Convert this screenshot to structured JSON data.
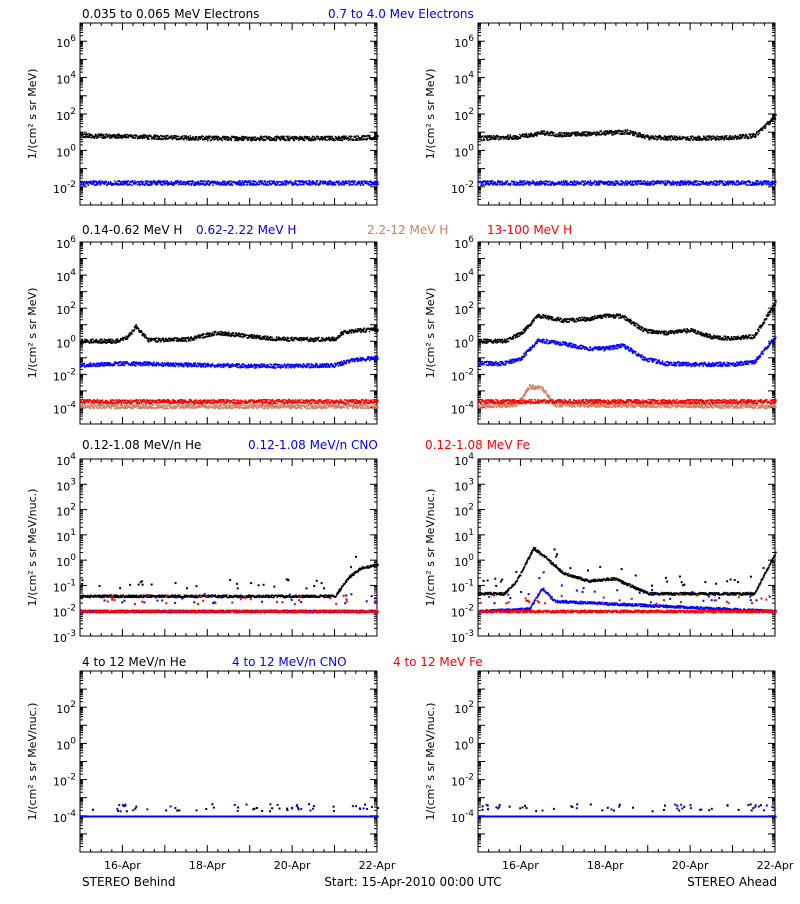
{
  "chart_data": {
    "type": "scatter",
    "footer": {
      "left": "STEREO Behind",
      "center": "Start: 15-Apr-2010 00:00 UTC",
      "right": "STEREO Ahead"
    },
    "x_ticks": [
      "16-Apr",
      "18-Apr",
      "20-Apr",
      "22-Apr"
    ],
    "x_range": [
      0,
      7
    ],
    "colors": {
      "black": "#000000",
      "blue": "#0000ff",
      "tan": "#cd8162",
      "red": "#ff0000",
      "orange": "#ff8c00"
    },
    "rows": [
      {
        "id": "electrons",
        "legend": [
          {
            "text": "0.035 to 0.065 MeV Electrons",
            "color": "#000000"
          },
          {
            "text": "0.7 to 4.0 Mev Electrons",
            "color": "#0000ff"
          }
        ],
        "ylabel": "1/(cm² s sr MeV)",
        "ylog": [
          -3,
          7
        ],
        "ytick_labels": [
          {
            "exp": -2,
            "text": "10",
            "sup": "-2"
          },
          {
            "exp": 0,
            "text": "10",
            "sup": "0"
          },
          {
            "exp": 2,
            "text": "10",
            "sup": "2"
          },
          {
            "exp": 4,
            "text": "10",
            "sup": "4"
          },
          {
            "exp": 6,
            "text": "10",
            "sup": "6"
          }
        ],
        "panels": {
          "behind": [
            {
              "name": "0.035 to 0.065 MeV Electrons",
              "color": "#000000",
              "x": [
                0,
                1,
                2,
                3,
                4,
                5,
                6,
                7
              ],
              "log10_flux": [
                0.85,
                0.8,
                0.75,
                0.7,
                0.7,
                0.7,
                0.7,
                0.75
              ]
            },
            {
              "name": "0.7 to 4.0 Mev Electrons",
              "color": "#0000ff",
              "x": [
                0,
                7
              ],
              "log10_flux": [
                -1.75,
                -1.75
              ]
            }
          ],
          "ahead": [
            {
              "name": "0.035 to 0.065 MeV Electrons",
              "color": "#000000",
              "x": [
                0,
                1,
                1.5,
                2,
                3,
                3.5,
                4,
                5,
                6,
                6.5,
                7
              ],
              "log10_flux": [
                0.7,
                0.8,
                1.0,
                0.9,
                1.0,
                1.05,
                0.75,
                0.7,
                0.75,
                0.85,
                1.9
              ]
            },
            {
              "name": "0.7 to 4.0 Mev Electrons",
              "color": "#0000ff",
              "x": [
                0,
                7
              ],
              "log10_flux": [
                -1.75,
                -1.75
              ]
            }
          ]
        }
      },
      {
        "id": "protons",
        "legend": [
          {
            "text": "0.14-0.62 MeV H",
            "color": "#000000"
          },
          {
            "text": "0.62-2.22 MeV H",
            "color": "#0000ff"
          },
          {
            "text": "2.2-12 MeV H",
            "color": "#cd8162"
          },
          {
            "text": "13-100 MeV H",
            "color": "#ff0000"
          }
        ],
        "ylabel": "1/(cm² s sr MeV)",
        "ylog": [
          -5,
          6
        ],
        "ytick_labels": [
          {
            "exp": -4,
            "text": "10",
            "sup": "-4"
          },
          {
            "exp": -2,
            "text": "10",
            "sup": "-2"
          },
          {
            "exp": 0,
            "text": "10",
            "sup": "0"
          },
          {
            "exp": 2,
            "text": "10",
            "sup": "2"
          },
          {
            "exp": 4,
            "text": "10",
            "sup": "4"
          },
          {
            "exp": 6,
            "text": "10",
            "sup": "6"
          }
        ],
        "panels": {
          "behind": [
            {
              "name": "0.14-0.62 MeV H",
              "color": "#000000",
              "x": [
                0,
                0.8,
                1.1,
                1.3,
                1.6,
                2.5,
                3.2,
                3.8,
                4.5,
                5.5,
                6,
                6.2,
                6.5,
                7
              ],
              "log10_flux": [
                0.05,
                0.05,
                0.25,
                0.95,
                0.1,
                0.15,
                0.55,
                0.4,
                0.2,
                0.15,
                0.2,
                0.6,
                0.7,
                0.75
              ]
            },
            {
              "name": "0.62-2.22 MeV H",
              "color": "#0000ff",
              "x": [
                0,
                1,
                2,
                3,
                4,
                5,
                6,
                6.4,
                7
              ],
              "log10_flux": [
                -1.4,
                -1.3,
                -1.35,
                -1.4,
                -1.45,
                -1.45,
                -1.4,
                -1.1,
                -0.95
              ]
            },
            {
              "name": "2.2-12 MeV H",
              "color": "#cd8162",
              "x": [
                0,
                7
              ],
              "log10_flux": [
                -3.9,
                -3.9
              ]
            },
            {
              "name": "13-100 MeV H",
              "color": "#ff0000",
              "x": [
                0,
                7
              ],
              "log10_flux": [
                -3.6,
                -3.6
              ]
            }
          ],
          "ahead": [
            {
              "name": "0.14-0.62 MeV H",
              "color": "#000000",
              "x": [
                0,
                0.6,
                1.0,
                1.4,
                2.0,
                2.6,
                3.0,
                3.4,
                3.9,
                4.4,
                5.0,
                5.5,
                6.0,
                6.5,
                7
              ],
              "log10_flux": [
                0.05,
                0.05,
                0.5,
                1.6,
                1.3,
                1.4,
                1.6,
                1.55,
                0.7,
                0.55,
                0.7,
                0.3,
                0.2,
                0.35,
                2.4
              ]
            },
            {
              "name": "0.62-2.22 MeV H",
              "color": "#0000ff",
              "x": [
                0,
                0.6,
                1.0,
                1.4,
                2.0,
                2.6,
                3.0,
                3.4,
                3.9,
                4.4,
                5.0,
                6.0,
                6.5,
                7
              ],
              "log10_flux": [
                -1.3,
                -1.3,
                -1.0,
                0.1,
                -0.1,
                -0.4,
                -0.4,
                -0.2,
                -1.0,
                -1.3,
                -1.35,
                -1.35,
                -1.2,
                0.3
              ]
            },
            {
              "name": "2.2-12 MeV H",
              "color": "#cd8162",
              "x": [
                0,
                0.9,
                1.2,
                1.5,
                1.8,
                7
              ],
              "log10_flux": [
                -3.9,
                -3.8,
                -2.7,
                -2.8,
                -3.8,
                -3.9
              ]
            },
            {
              "name": "13-100 MeV H",
              "color": "#ff0000",
              "x": [
                0,
                7
              ],
              "log10_flux": [
                -3.6,
                -3.6
              ]
            }
          ]
        }
      },
      {
        "id": "suprathermal",
        "legend": [
          {
            "text": "0.12-1.08 MeV/n He",
            "color": "#000000"
          },
          {
            "text": "0.12-1.08 MeV/n CNO",
            "color": "#0000ff"
          },
          {
            "text": "0.12-1.08 MeV Fe",
            "color": "#ff0000"
          }
        ],
        "ylabel": "1/(cm² s sr MeV/nuc.)",
        "ylog": [
          -3,
          4
        ],
        "ytick_labels": [
          {
            "exp": -3,
            "text": "10",
            "sup": "-3"
          },
          {
            "exp": -2,
            "text": "10",
            "sup": "-2"
          },
          {
            "exp": -1,
            "text": "10",
            "sup": "-1"
          },
          {
            "exp": 0,
            "text": "10",
            "sup": "0"
          },
          {
            "exp": 1,
            "text": "10",
            "sup": "1"
          },
          {
            "exp": 2,
            "text": "10",
            "sup": "2"
          },
          {
            "exp": 3,
            "text": "10",
            "sup": "3"
          },
          {
            "exp": 4,
            "text": "10",
            "sup": "4"
          }
        ],
        "panels": {
          "behind": [
            {
              "name": "0.12-1.08 MeV/n He",
              "color": "#000000",
              "x": [
                0,
                6.0,
                6.3,
                6.6,
                7
              ],
              "log10_flux": [
                -1.4,
                -1.4,
                -0.7,
                -0.3,
                -0.15
              ]
            },
            {
              "name": "0.12-1.08 MeV/n CNO",
              "color": "#0000ff",
              "x": [
                0,
                7
              ],
              "log10_flux": [
                -2.0,
                -2.0
              ]
            },
            {
              "name": "0.12-1.08 MeV Fe",
              "color": "#ff0000",
              "x": [
                0,
                7
              ],
              "log10_flux": [
                -2.0,
                -2.0
              ]
            }
          ],
          "ahead": [
            {
              "name": "0.12-1.08 MeV/n He",
              "color": "#000000",
              "x": [
                0,
                0.6,
                0.9,
                1.3,
                1.6,
                2.0,
                2.6,
                3.2,
                3.6,
                4.0,
                6.5,
                7
              ],
              "log10_flux": [
                -1.3,
                -1.3,
                -0.8,
                0.5,
                0.1,
                -0.5,
                -0.8,
                -0.7,
                -1.0,
                -1.3,
                -1.3,
                0.3
              ]
            },
            {
              "name": "0.12-1.08 MeV/n CNO",
              "color": "#0000ff",
              "x": [
                0,
                1.2,
                1.5,
                1.8,
                7
              ],
              "log10_flux": [
                -2.0,
                -1.9,
                -1.1,
                -1.6,
                -2.0
              ]
            },
            {
              "name": "0.12-1.08 MeV Fe",
              "color": "#ff0000",
              "x": [
                0,
                7
              ],
              "log10_flux": [
                -2.0,
                -2.0
              ]
            }
          ]
        }
      },
      {
        "id": "high_energy_ions",
        "legend": [
          {
            "text": "4 to 12 MeV/n He",
            "color": "#000000"
          },
          {
            "text": "4 to 12 MeV/n CNO",
            "color": "#0000ff"
          },
          {
            "text": "4 to 12 MeV Fe",
            "color": "#ff0000"
          }
        ],
        "ylabel": "1/(cm² s sr MeV/nuc.)",
        "ylog": [
          -6,
          4
        ],
        "ytick_labels": [
          {
            "exp": -4,
            "text": "10",
            "sup": "-4"
          },
          {
            "exp": -2,
            "text": "10",
            "sup": "-2"
          },
          {
            "exp": 0,
            "text": "10",
            "sup": "0"
          },
          {
            "exp": 2,
            "text": "10",
            "sup": "2"
          }
        ],
        "panels": {
          "behind": [
            {
              "name": "4 to 12 MeV/n He",
              "color": "#000000",
              "x": [
                0,
                7
              ],
              "log10_flux": [
                -4.0,
                -4.0
              ]
            },
            {
              "name": "4 to 12 MeV/n CNO",
              "color": "#0000ff",
              "x": [
                0,
                7
              ],
              "log10_flux": [
                -4.0,
                -4.0
              ]
            }
          ],
          "ahead": [
            {
              "name": "4 to 12 MeV/n He",
              "color": "#000000",
              "x": [
                0,
                7
              ],
              "log10_flux": [
                -4.0,
                -4.0
              ]
            },
            {
              "name": "4 to 12 MeV/n CNO",
              "color": "#0000ff",
              "x": [
                0,
                7
              ],
              "log10_flux": [
                -4.0,
                -4.0
              ]
            }
          ]
        }
      }
    ]
  }
}
